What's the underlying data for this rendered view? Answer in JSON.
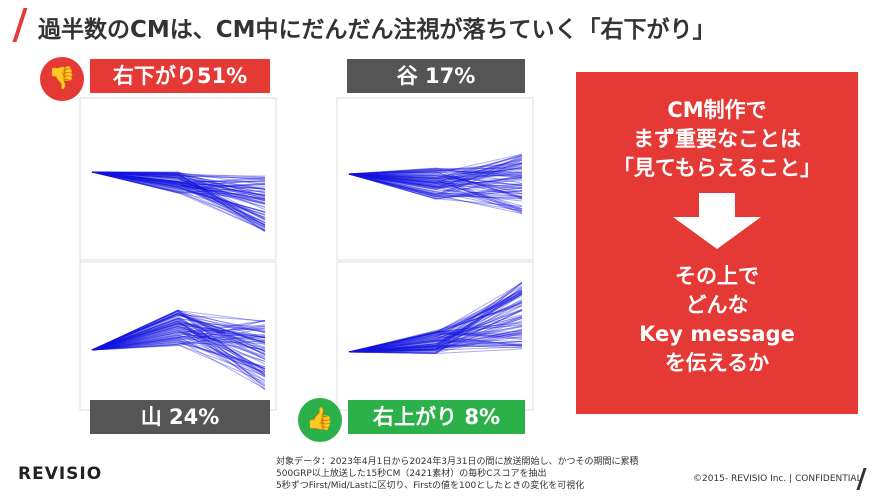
{
  "header": {
    "title": "過半数のCMは、CM中にだんだん注視が落ちていく「右下がり」"
  },
  "panels": [
    {
      "label": "右下がり51%"
    },
    {
      "label": "谷 17%"
    },
    {
      "label": "山 24%"
    },
    {
      "label": "右上がり 8%"
    }
  ],
  "message": {
    "top": [
      "CM制作で",
      "まず重要なことは",
      "「見てもらえること」"
    ],
    "bottom": [
      "その上で",
      "どんな",
      "Key message",
      "を伝えるか"
    ]
  },
  "footnote": [
    "対象データ：2023年4月1日から2024年3月31日の間に放送開始し、かつその期間に累積",
    "500GRP以上放送した15秒CM（2421素材）の毎秒Cスコアを抽出",
    "5秒ずつFirst/Mid/Lastに区切り、Firstの値を100としたときの変化を可視化"
  ],
  "footer": {
    "logo": "REVISIO",
    "copyright": "©2015- REVISIO Inc. | CONFIDENTIAL"
  }
}
